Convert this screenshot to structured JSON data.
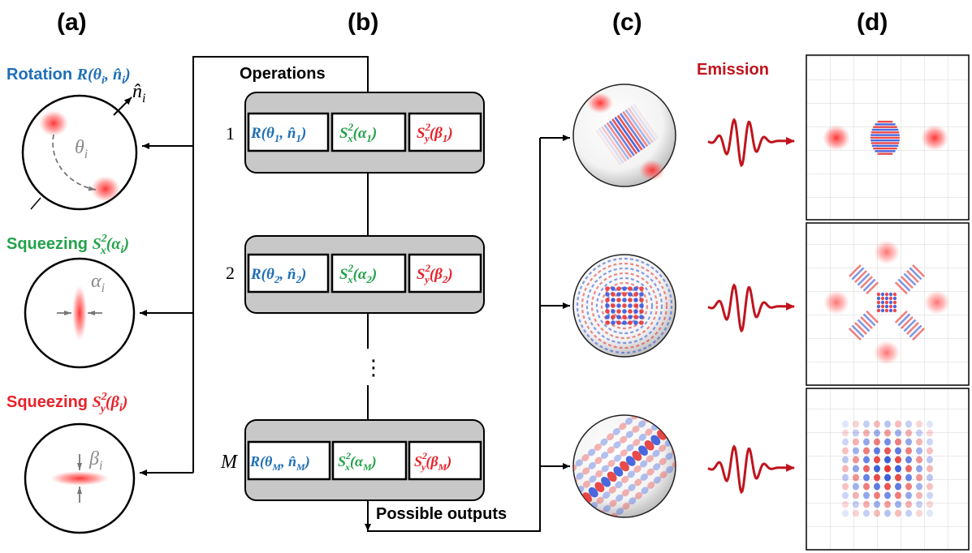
{
  "panel_labels": [
    "(a)",
    "(b)",
    "(c)",
    "(d)"
  ],
  "panel_a": {
    "rotation": {
      "prefix": "Rotation ",
      "math": "R(θ",
      "sub": "i",
      "mid": ", n̂",
      "sub2": "i",
      "close": ")",
      "axis_label": "n̂",
      "axis_sub": "i",
      "angle_label": "θ",
      "angle_sub": "i"
    },
    "squeeze_x": {
      "prefix": "Squeezing ",
      "op": "S",
      "sup": "2",
      "sub": "x",
      "arg": "(α",
      "arg_sub": "i",
      "close": ")",
      "param_label": "α",
      "param_sub": "i"
    },
    "squeeze_y": {
      "prefix": "Squeezing ",
      "op": "S",
      "sup": "2",
      "sub": "y",
      "arg": "(β",
      "arg_sub": "i",
      "close": ")",
      "param_label": "β",
      "param_sub": "i"
    }
  },
  "panel_b": {
    "heading": "Operations",
    "rows": [
      {
        "index": "1",
        "r_theta": "θ",
        "r_n": "n̂",
        "sub": "1"
      },
      {
        "index": "2",
        "r_theta": "θ",
        "r_n": "n̂",
        "sub": "2"
      },
      {
        "index": "M",
        "r_theta": "θ",
        "r_n": "n̂",
        "sub": "M"
      }
    ],
    "ellipsis": "⋮",
    "outputs_label": "Possible outputs"
  },
  "panel_c": {
    "emission_label": "Emission"
  },
  "colors": {
    "blue": "#1f6fb5",
    "green": "#22a24a",
    "red": "#e8222b",
    "dark_red": "#c0141d",
    "box_gray": "#c8c8c8"
  }
}
